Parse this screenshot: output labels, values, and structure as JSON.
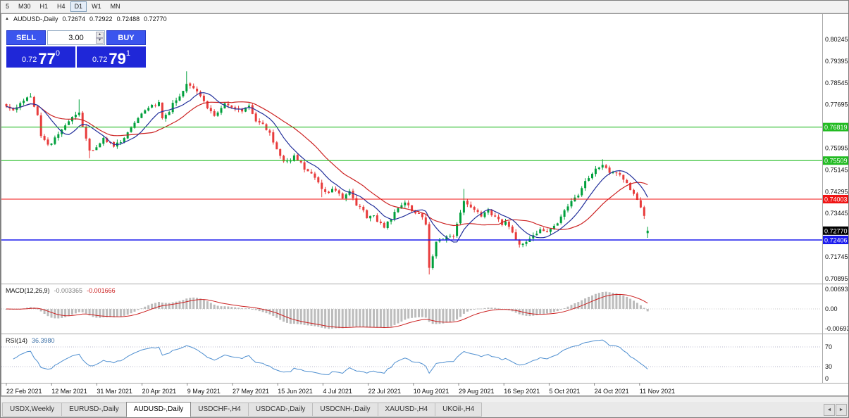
{
  "toolbar": {
    "timeframes": [
      {
        "label": "5",
        "active": false
      },
      {
        "label": "M30",
        "active": false
      },
      {
        "label": "H1",
        "active": false
      },
      {
        "label": "H4",
        "active": false
      },
      {
        "label": "D1",
        "active": true
      },
      {
        "label": "W1",
        "active": false
      },
      {
        "label": "MN",
        "active": false
      }
    ]
  },
  "chart_header": {
    "collapse_icon": "▲",
    "title": "AUDUSD-,Daily",
    "open": "0.72674",
    "high": "0.72922",
    "low": "0.72488",
    "close": "0.72770"
  },
  "one_click": {
    "sell_label": "SELL",
    "buy_label": "BUY",
    "volume": "3.00",
    "spinner_up": "▴",
    "spinner_down": "▾",
    "sell_price": {
      "prefix": "0.72",
      "big": "77",
      "sup": "0"
    },
    "buy_price": {
      "prefix": "0.72",
      "big": "79",
      "sup": "1"
    }
  },
  "price_axis": {
    "scale_labels": [
      {
        "label": "0.80245",
        "value": 0.80245
      },
      {
        "label": "0.79395",
        "value": 0.79395
      },
      {
        "label": "0.78545",
        "value": 0.78545
      },
      {
        "label": "0.77695",
        "value": 0.77695
      },
      {
        "label": "0.75995",
        "value": 0.75995
      },
      {
        "label": "0.75145",
        "value": 0.75145
      },
      {
        "label": "0.74295",
        "value": 0.74295
      },
      {
        "label": "0.73445",
        "value": 0.73445
      },
      {
        "label": "0.71745",
        "value": 0.71745
      },
      {
        "label": "0.70895",
        "value": 0.70895
      }
    ],
    "hlines": [
      {
        "label": "0.76819",
        "value": 0.76819,
        "color": "#22bb22"
      },
      {
        "label": "0.75509",
        "value": 0.75509,
        "color": "#22bb22"
      },
      {
        "label": "0.74003",
        "value": 0.74003,
        "color": "#f01414"
      },
      {
        "label": "0.72406",
        "value": 0.72406,
        "color": "#1a1aee"
      }
    ],
    "current_price": {
      "label": "0.72770",
      "value": 0.7277,
      "bg": "#000000"
    }
  },
  "macd_panel": {
    "title": "MACD(12,26,9)",
    "value_main": "-0.003365",
    "value_signal": "-0.001666",
    "axis_labels": [
      {
        "label": "0.00693",
        "value": 0.00693
      },
      {
        "label": "0.00",
        "value": 0
      },
      {
        "label": "-0.00693",
        "value": -0.00693
      }
    ]
  },
  "rsi_panel": {
    "title": "RSI(14)",
    "value": "36.3980",
    "axis_labels": [
      {
        "label": "70",
        "value": 70
      },
      {
        "label": "30",
        "value": 30
      },
      {
        "label": "0",
        "value": 0
      }
    ],
    "levels": [
      70,
      30
    ]
  },
  "tabs": {
    "items": [
      {
        "label": "USDX,Weekly"
      },
      {
        "label": "EURUSD-,Daily"
      },
      {
        "label": "AUDUSD-,Daily"
      },
      {
        "label": "USDCHF-,H4"
      },
      {
        "label": "USDCAD-,Daily"
      },
      {
        "label": "USDCNH-,Daily"
      },
      {
        "label": "XAUUSD-,H4"
      },
      {
        "label": "UKOil-,H4"
      }
    ],
    "active_index": 2,
    "nav_left": "◄",
    "nav_right": "►"
  },
  "chart_data": {
    "type": "candlestick",
    "symbol": "AUDUSD",
    "timeframe": "Daily",
    "candle_count": 186,
    "x_labels": [
      "22 Feb 2021",
      "12 Mar 2021",
      "31 Mar 2021",
      "20 Apr 2021",
      "9 May 2021",
      "27 May 2021",
      "15 Jun 2021",
      "4 Jul 2021",
      "22 Jul 2021",
      "10 Aug 2021",
      "29 Aug 2021",
      "16 Sep 2021",
      "5 Oct 2021",
      "24 Oct 2021",
      "11 Nov 2021"
    ],
    "price_range_visible": [
      0.707,
      0.814
    ],
    "anchors": [
      [
        0,
        0.7765
      ],
      [
        2,
        0.7745
      ],
      [
        4,
        0.778
      ],
      [
        7,
        0.78
      ],
      [
        9,
        0.773
      ],
      [
        10,
        0.7645
      ],
      [
        12,
        0.7615
      ],
      [
        13,
        0.762
      ],
      [
        16,
        0.767
      ],
      [
        19,
        0.7725
      ],
      [
        21,
        0.7735
      ],
      [
        23,
        0.764
      ],
      [
        24,
        0.759
      ],
      [
        26,
        0.76
      ],
      [
        28,
        0.7635
      ],
      [
        31,
        0.761
      ],
      [
        33,
        0.7625
      ],
      [
        35,
        0.766
      ],
      [
        37,
        0.7695
      ],
      [
        39,
        0.7735
      ],
      [
        42,
        0.7765
      ],
      [
        44,
        0.7775
      ],
      [
        45,
        0.772
      ],
      [
        47,
        0.7745
      ],
      [
        48,
        0.778
      ],
      [
        50,
        0.78
      ],
      [
        52,
        0.785
      ],
      [
        54,
        0.7835
      ],
      [
        57,
        0.778
      ],
      [
        59,
        0.774
      ],
      [
        60,
        0.7725
      ],
      [
        62,
        0.776
      ],
      [
        63,
        0.7775
      ],
      [
        65,
        0.7755
      ],
      [
        68,
        0.7745
      ],
      [
        70,
        0.7765
      ],
      [
        72,
        0.77
      ],
      [
        74,
        0.769
      ],
      [
        76,
        0.7655
      ],
      [
        78,
        0.759
      ],
      [
        80,
        0.7545
      ],
      [
        82,
        0.7555
      ],
      [
        83,
        0.757
      ],
      [
        85,
        0.754
      ],
      [
        86,
        0.752
      ],
      [
        88,
        0.7505
      ],
      [
        89,
        0.7485
      ],
      [
        91,
        0.744
      ],
      [
        93,
        0.742
      ],
      [
        94,
        0.7445
      ],
      [
        96,
        0.7425
      ],
      [
        97,
        0.74
      ],
      [
        99,
        0.7435
      ],
      [
        101,
        0.7375
      ],
      [
        103,
        0.736
      ],
      [
        104,
        0.733
      ],
      [
        106,
        0.734
      ],
      [
        107,
        0.7315
      ],
      [
        109,
        0.729
      ],
      [
        111,
        0.7325
      ],
      [
        112,
        0.735
      ],
      [
        114,
        0.7375
      ],
      [
        115,
        0.739
      ],
      [
        117,
        0.7355
      ],
      [
        119,
        0.734
      ],
      [
        120,
        0.7325
      ],
      [
        121,
        0.73
      ],
      [
        122,
        0.713
      ],
      [
        123,
        0.718
      ],
      [
        124,
        0.723
      ],
      [
        126,
        0.7245
      ],
      [
        127,
        0.7255
      ],
      [
        129,
        0.726
      ],
      [
        130,
        0.7305
      ],
      [
        131,
        0.735
      ],
      [
        132,
        0.7395
      ],
      [
        134,
        0.7365
      ],
      [
        136,
        0.735
      ],
      [
        137,
        0.7335
      ],
      [
        139,
        0.7355
      ],
      [
        140,
        0.734
      ],
      [
        142,
        0.7325
      ],
      [
        143,
        0.73
      ],
      [
        144,
        0.731
      ],
      [
        146,
        0.7265
      ],
      [
        148,
        0.7225
      ],
      [
        150,
        0.7235
      ],
      [
        151,
        0.7245
      ],
      [
        153,
        0.727
      ],
      [
        154,
        0.7285
      ],
      [
        156,
        0.7275
      ],
      [
        157,
        0.728
      ],
      [
        159,
        0.731
      ],
      [
        161,
        0.7355
      ],
      [
        163,
        0.7395
      ],
      [
        165,
        0.741
      ],
      [
        167,
        0.747
      ],
      [
        169,
        0.7495
      ],
      [
        170,
        0.752
      ],
      [
        172,
        0.7535
      ],
      [
        174,
        0.75
      ],
      [
        176,
        0.7505
      ],
      [
        178,
        0.748
      ],
      [
        180,
        0.744
      ],
      [
        182,
        0.7395
      ],
      [
        183,
        0.737
      ],
      [
        184,
        0.733
      ],
      [
        185,
        0.7277
      ]
    ],
    "wick_highs": {
      "7": 0.7815,
      "21": 0.779,
      "52": 0.79,
      "132": 0.744,
      "172": 0.7556
    },
    "wick_lows": {
      "24": 0.756,
      "91": 0.7408,
      "109": 0.7286,
      "122": 0.7106
    },
    "last_candle": {
      "open": 0.72674,
      "high": 0.72922,
      "low": 0.72488,
      "close": 0.7277
    },
    "indicators": {
      "ma_fast_period": 9,
      "ma_slow_period": 21,
      "macd": [
        12,
        26,
        9
      ],
      "rsi_period": 14
    },
    "colors": {
      "candle_up": "#00a03c",
      "candle_down": "#e83c3c",
      "ma_fast": "#23309b",
      "ma_slow": "#cc2222",
      "macd_hist": "#bcbcbc",
      "macd_signal": "#cc2222",
      "rsi": "#4f8fd0"
    }
  }
}
